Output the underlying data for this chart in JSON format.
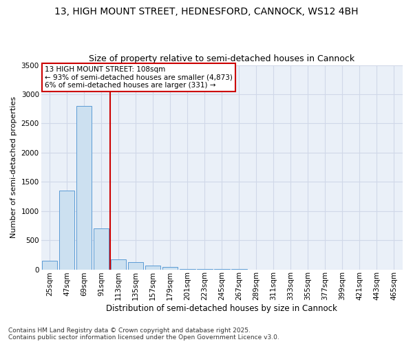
{
  "title_line1": "13, HIGH MOUNT STREET, HEDNESFORD, CANNOCK, WS12 4BH",
  "title_line2": "Size of property relative to semi-detached houses in Cannock",
  "xlabel": "Distribution of semi-detached houses by size in Cannock",
  "ylabel": "Number of semi-detached properties",
  "categories": [
    "25sqm",
    "47sqm",
    "69sqm",
    "91sqm",
    "113sqm",
    "135sqm",
    "157sqm",
    "179sqm",
    "201sqm",
    "223sqm",
    "245sqm",
    "267sqm",
    "289sqm",
    "311sqm",
    "333sqm",
    "355sqm",
    "377sqm",
    "399sqm",
    "421sqm",
    "443sqm",
    "465sqm"
  ],
  "values": [
    150,
    1350,
    2800,
    700,
    175,
    120,
    65,
    40,
    5,
    3,
    2,
    1,
    0,
    0,
    0,
    0,
    0,
    0,
    0,
    0,
    0
  ],
  "bar_color": "#cce0f0",
  "bar_edge_color": "#5b9bd5",
  "vline_color": "#cc0000",
  "annotation_text": "13 HIGH MOUNT STREET: 108sqm\n← 93% of semi-detached houses are smaller (4,873)\n6% of semi-detached houses are larger (331) →",
  "annotation_box_color": "#cc0000",
  "ylim": [
    0,
    3500
  ],
  "yticks": [
    0,
    500,
    1000,
    1500,
    2000,
    2500,
    3000,
    3500
  ],
  "grid_color": "#d0d8e8",
  "background_color": "#eaf0f8",
  "footer_line1": "Contains HM Land Registry data © Crown copyright and database right 2025.",
  "footer_line2": "Contains public sector information licensed under the Open Government Licence v3.0.",
  "title_fontsize": 10,
  "subtitle_fontsize": 9,
  "axis_label_fontsize": 8.5,
  "tick_fontsize": 7.5,
  "annotation_fontsize": 7.5,
  "footer_fontsize": 6.5,
  "ylabel_fontsize": 8
}
